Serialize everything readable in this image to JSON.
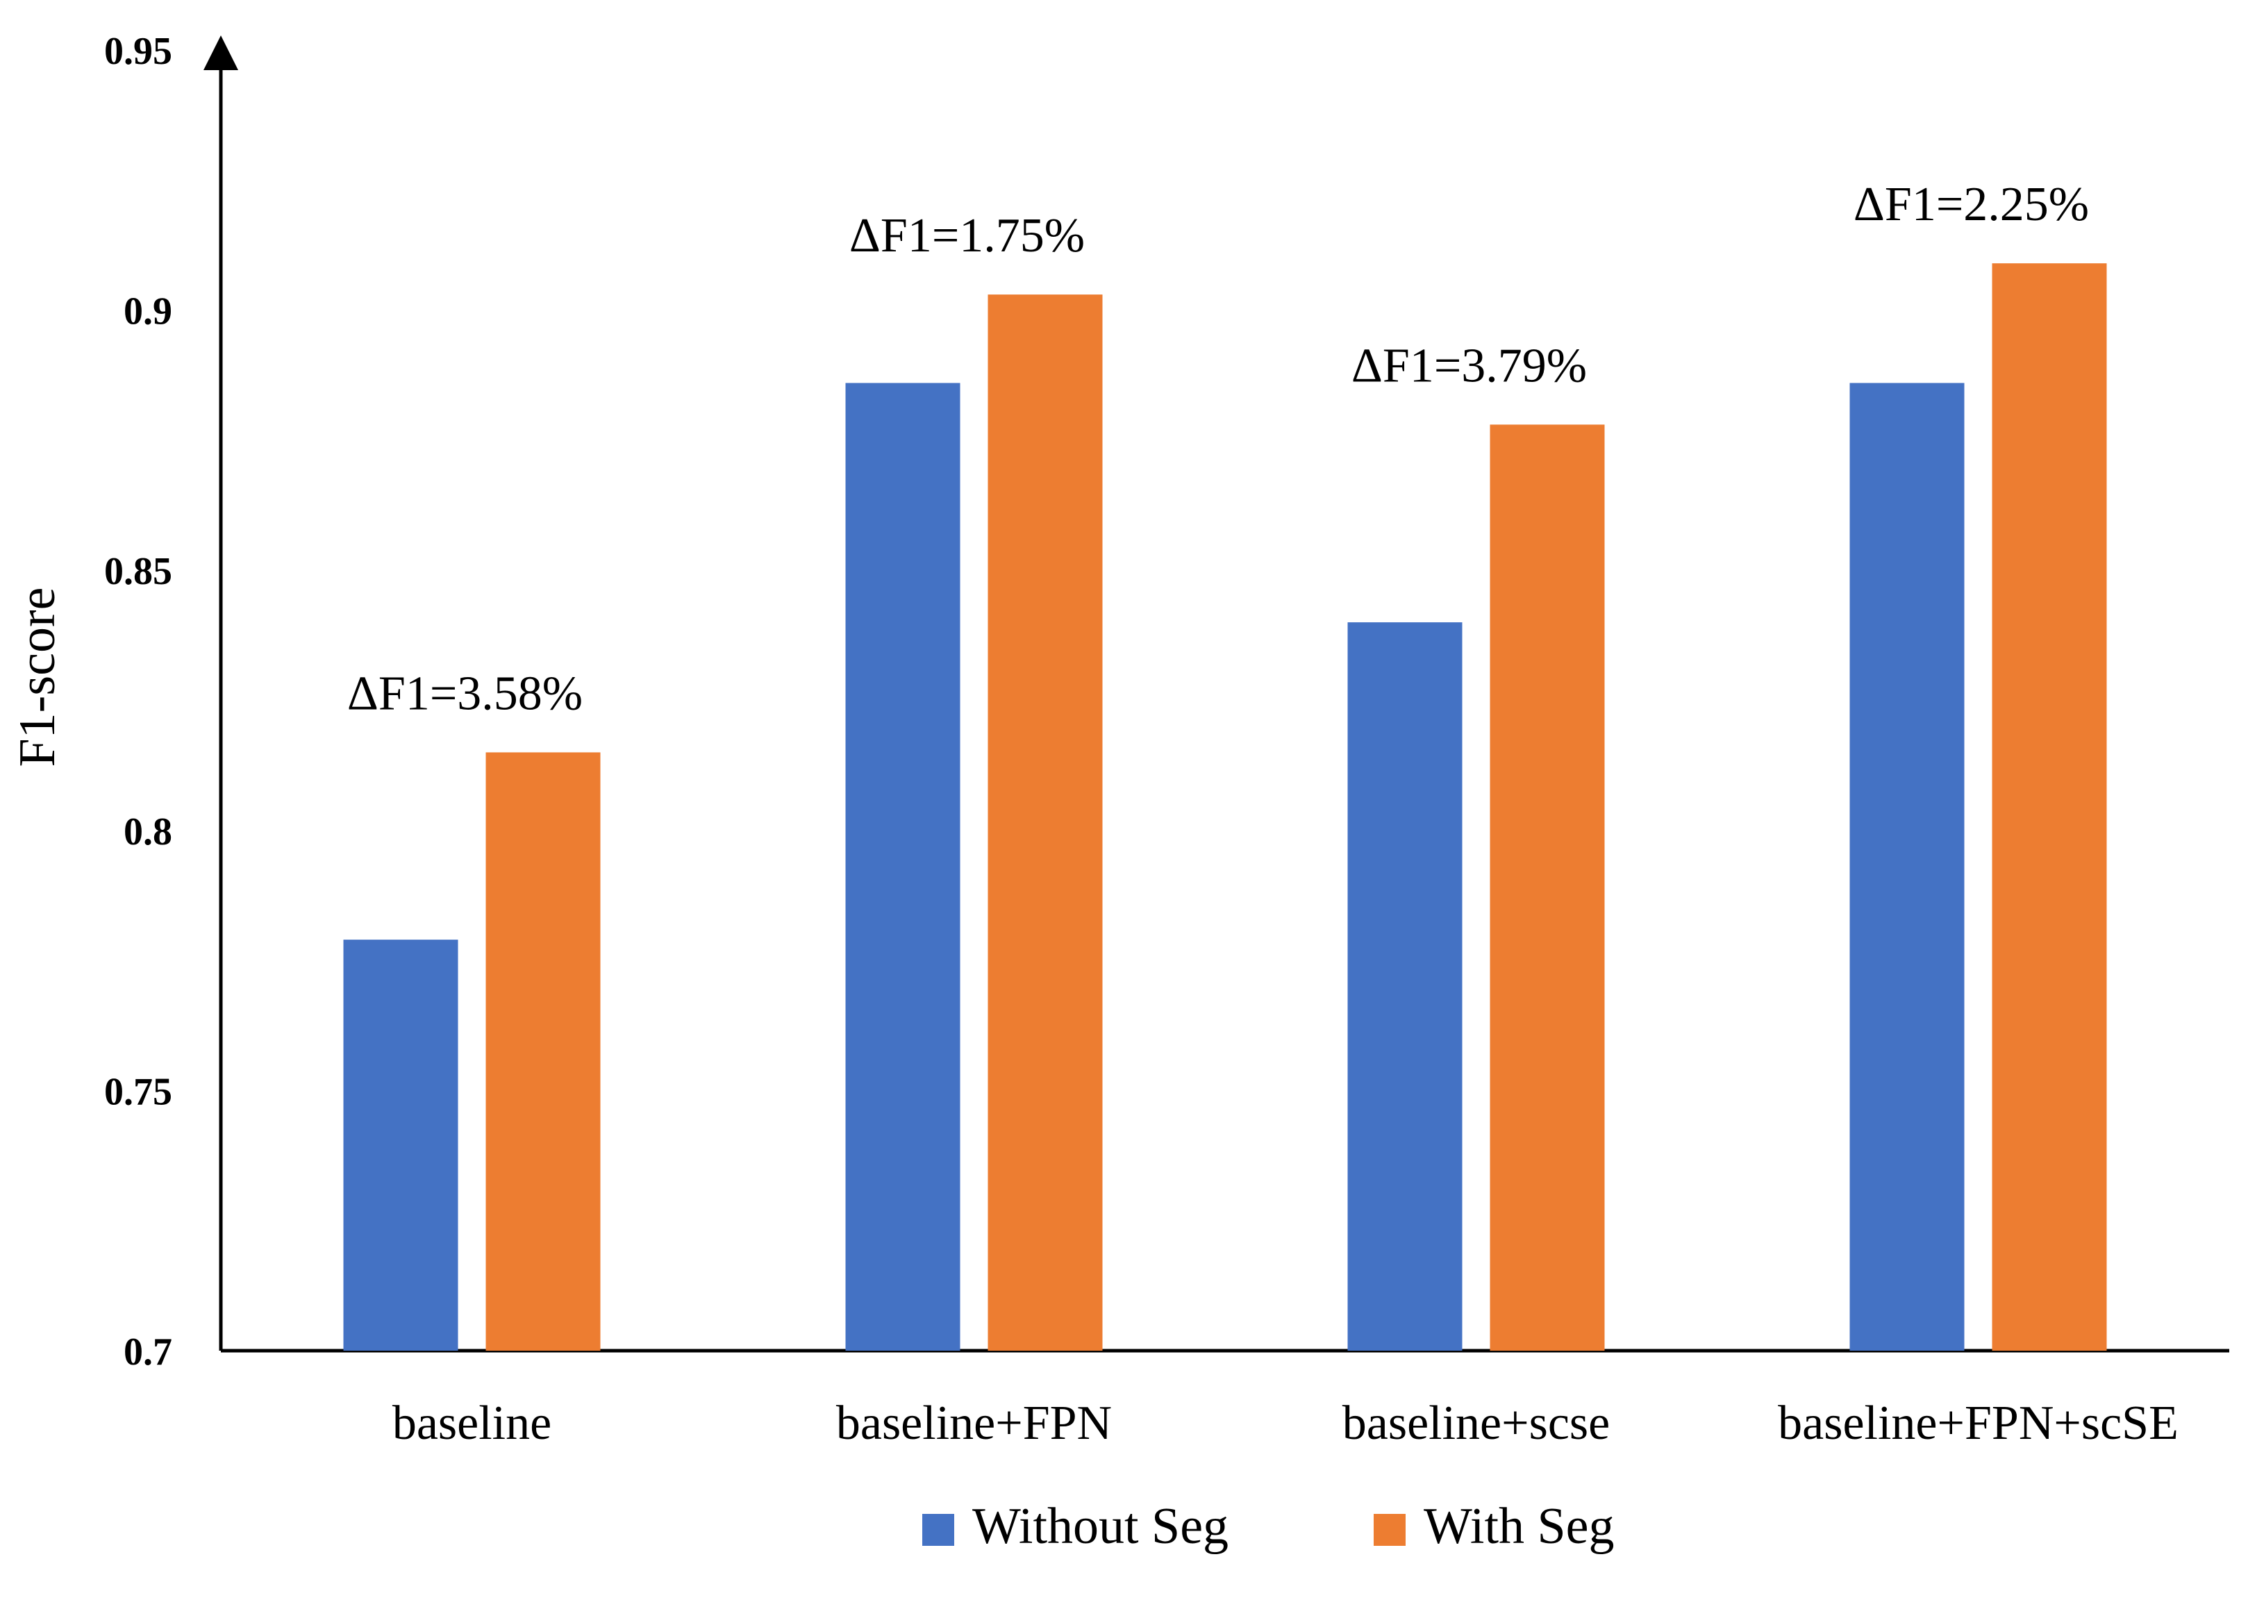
{
  "chart_data": {
    "type": "bar",
    "title": "",
    "xlabel": "",
    "ylabel": "F1-score",
    "ylim": [
      0.7,
      0.95
    ],
    "yticks": [
      "0.7",
      "0.75",
      "0.8",
      "0.85",
      "0.9",
      "0.95"
    ],
    "categories": [
      "baseline",
      "baseline+FPN",
      "baseline+scse",
      "baseline+FPN+scSE"
    ],
    "series": [
      {
        "name": "Without Seg",
        "color": "#4472C4",
        "values": [
          0.779,
          0.886,
          0.84,
          0.886
        ]
      },
      {
        "name": "With Seg",
        "color": "#ED7D31",
        "values": [
          0.815,
          0.903,
          0.878,
          0.909
        ]
      }
    ],
    "annotations": [
      "ΔF1=3.58%",
      "ΔF1=1.75%",
      "ΔF1=3.79%",
      "ΔF1=2.25%"
    ],
    "legend_position": "bottom-center",
    "grid": false
  }
}
